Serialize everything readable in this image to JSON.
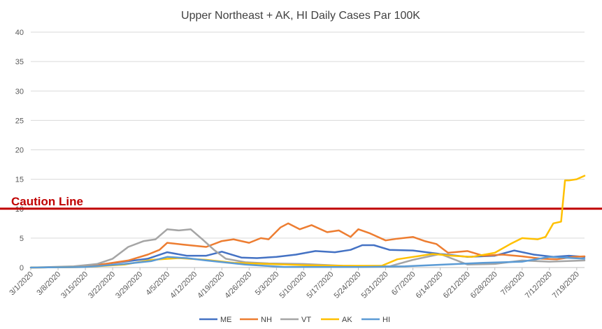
{
  "chart_data": {
    "type": "line",
    "title": "Upper Northeast + AK, HI Daily Cases Par 100K",
    "xlabel": "",
    "ylabel": "",
    "ylim": [
      0,
      40
    ],
    "yticks": [
      0,
      5,
      10,
      15,
      20,
      25,
      30,
      35,
      40
    ],
    "grid": true,
    "legend_position": "bottom",
    "x_start": "3/1/2020",
    "x_end": "7/21/2020",
    "x_tick_labels": [
      "3/1/2020",
      "3/8/2020",
      "3/15/2020",
      "3/22/2020",
      "3/29/2020",
      "4/5/2020",
      "4/12/2020",
      "4/19/2020",
      "4/26/2020",
      "5/3/2020",
      "5/10/2020",
      "5/17/2020",
      "5/24/2020",
      "5/31/2020",
      "6/7/2020",
      "6/14/2020",
      "6/21/2020",
      "6/28/2020",
      "7/5/2020",
      "7/12/2020",
      "7/19/2020"
    ],
    "reference_line": {
      "label": "Caution Line",
      "value": 10,
      "color": "#C00000"
    },
    "series": [
      {
        "name": "ME",
        "color": "#4472C4",
        "x": [
          "3/1/2020",
          "3/14/2020",
          "3/20/2020",
          "3/25/2020",
          "3/31/2020",
          "4/5/2020",
          "4/10/2020",
          "4/15/2020",
          "4/19/2020",
          "4/24/2020",
          "4/28/2020",
          "5/3/2020",
          "5/8/2020",
          "5/13/2020",
          "5/18/2020",
          "5/22/2020",
          "5/25/2020",
          "5/28/2020",
          "6/1/2020",
          "6/7/2020",
          "6/14/2020",
          "6/21/2020",
          "6/28/2020",
          "7/3/2020",
          "7/8/2020",
          "7/13/2020",
          "7/17/2020",
          "7/21/2020"
        ],
        "values": [
          0,
          0.1,
          0.6,
          1.0,
          1.5,
          2.6,
          2.0,
          2.0,
          2.7,
          1.7,
          1.6,
          1.8,
          2.2,
          2.8,
          2.6,
          3.0,
          3.8,
          3.8,
          3.0,
          2.9,
          2.3,
          1.8,
          2.0,
          2.9,
          2.2,
          1.8,
          2.0,
          1.8
        ]
      },
      {
        "name": "NH",
        "color": "#ED7D31",
        "x": [
          "3/1/2020",
          "3/14/2020",
          "3/20/2020",
          "3/26/2020",
          "3/31/2020",
          "4/3/2020",
          "4/5/2020",
          "4/9/2020",
          "4/15/2020",
          "4/19/2020",
          "4/22/2020",
          "4/26/2020",
          "4/29/2020",
          "5/1/2020",
          "5/4/2020",
          "5/6/2020",
          "5/9/2020",
          "5/12/2020",
          "5/16/2020",
          "5/19/2020",
          "5/22/2020",
          "5/24/2020",
          "5/27/2020",
          "5/31/2020",
          "6/3/2020",
          "6/7/2020",
          "6/10/2020",
          "6/13/2020",
          "6/16/2020",
          "6/21/2020",
          "6/25/2020",
          "6/30/2020",
          "7/5/2020",
          "7/10/2020",
          "7/14/2020",
          "7/18/2020",
          "7/21/2020"
        ],
        "values": [
          0,
          0.1,
          0.6,
          1.2,
          2.2,
          3.0,
          4.2,
          3.9,
          3.5,
          4.5,
          4.8,
          4.2,
          5.0,
          4.8,
          6.8,
          7.5,
          6.5,
          7.2,
          6.0,
          6.3,
          5.2,
          6.5,
          5.8,
          4.6,
          4.9,
          5.2,
          4.5,
          4.0,
          2.5,
          2.8,
          2.0,
          2.2,
          1.9,
          1.5,
          1.4,
          1.8,
          1.9
        ]
      },
      {
        "name": "VT",
        "color": "#A5A5A5",
        "x": [
          "3/1/2020",
          "3/12/2020",
          "3/18/2020",
          "3/22/2020",
          "3/26/2020",
          "3/30/2020",
          "4/2/2020",
          "4/5/2020",
          "4/8/2020",
          "4/11/2020",
          "4/14/2020",
          "4/17/2020",
          "4/20/2020",
          "4/25/2020",
          "5/1/2020",
          "5/10/2020",
          "5/20/2020",
          "6/1/2020",
          "6/7/2020",
          "6/14/2020",
          "6/21/2020",
          "6/28/2020",
          "7/5/2020",
          "7/12/2020",
          "7/21/2020"
        ],
        "values": [
          0,
          0.2,
          0.6,
          1.5,
          3.5,
          4.5,
          4.8,
          6.5,
          6.3,
          6.5,
          4.8,
          3.0,
          1.5,
          0.9,
          0.7,
          0.6,
          0.3,
          0.2,
          1.3,
          2.3,
          0.5,
          0.6,
          1.2,
          1.0,
          1.2
        ]
      },
      {
        "name": "AK",
        "color": "#FFC000",
        "x": [
          "3/1/2020",
          "3/15/2020",
          "3/25/2020",
          "4/1/2020",
          "4/8/2020",
          "4/15/2020",
          "4/22/2020",
          "5/1/2020",
          "5/10/2020",
          "5/20/2020",
          "5/30/2020",
          "6/3/2020",
          "6/7/2020",
          "6/12/2020",
          "6/17/2020",
          "6/22/2020",
          "6/28/2020",
          "7/2/2020",
          "7/5/2020",
          "7/9/2020",
          "7/11/2020",
          "7/13/2020",
          "7/15/2020",
          "7/16/2020",
          "7/17/2020",
          "7/19/2020",
          "7/21/2020"
        ],
        "values": [
          0,
          0.1,
          0.5,
          1.3,
          1.6,
          1.3,
          0.8,
          0.6,
          0.4,
          0.3,
          0.3,
          1.4,
          1.8,
          2.3,
          2.0,
          1.8,
          2.5,
          4.0,
          5.0,
          4.8,
          5.2,
          7.5,
          7.8,
          14.8,
          14.8,
          15.0,
          15.6
        ]
      },
      {
        "name": "HI",
        "color": "#5B9BD5",
        "x": [
          "3/1/2020",
          "3/15/2020",
          "3/25/2020",
          "4/1/2020",
          "4/5/2020",
          "4/10/2020",
          "4/15/2020",
          "4/25/2020",
          "5/5/2020",
          "5/15/2020",
          "5/25/2020",
          "6/5/2020",
          "6/15/2020",
          "6/25/2020",
          "7/5/2020",
          "7/12/2020",
          "7/21/2020"
        ],
        "values": [
          0,
          0.1,
          0.6,
          1.1,
          1.8,
          1.6,
          1.2,
          0.5,
          0.1,
          0.1,
          0.1,
          0.2,
          0.5,
          0.8,
          1.0,
          1.8,
          1.5
        ]
      }
    ]
  }
}
